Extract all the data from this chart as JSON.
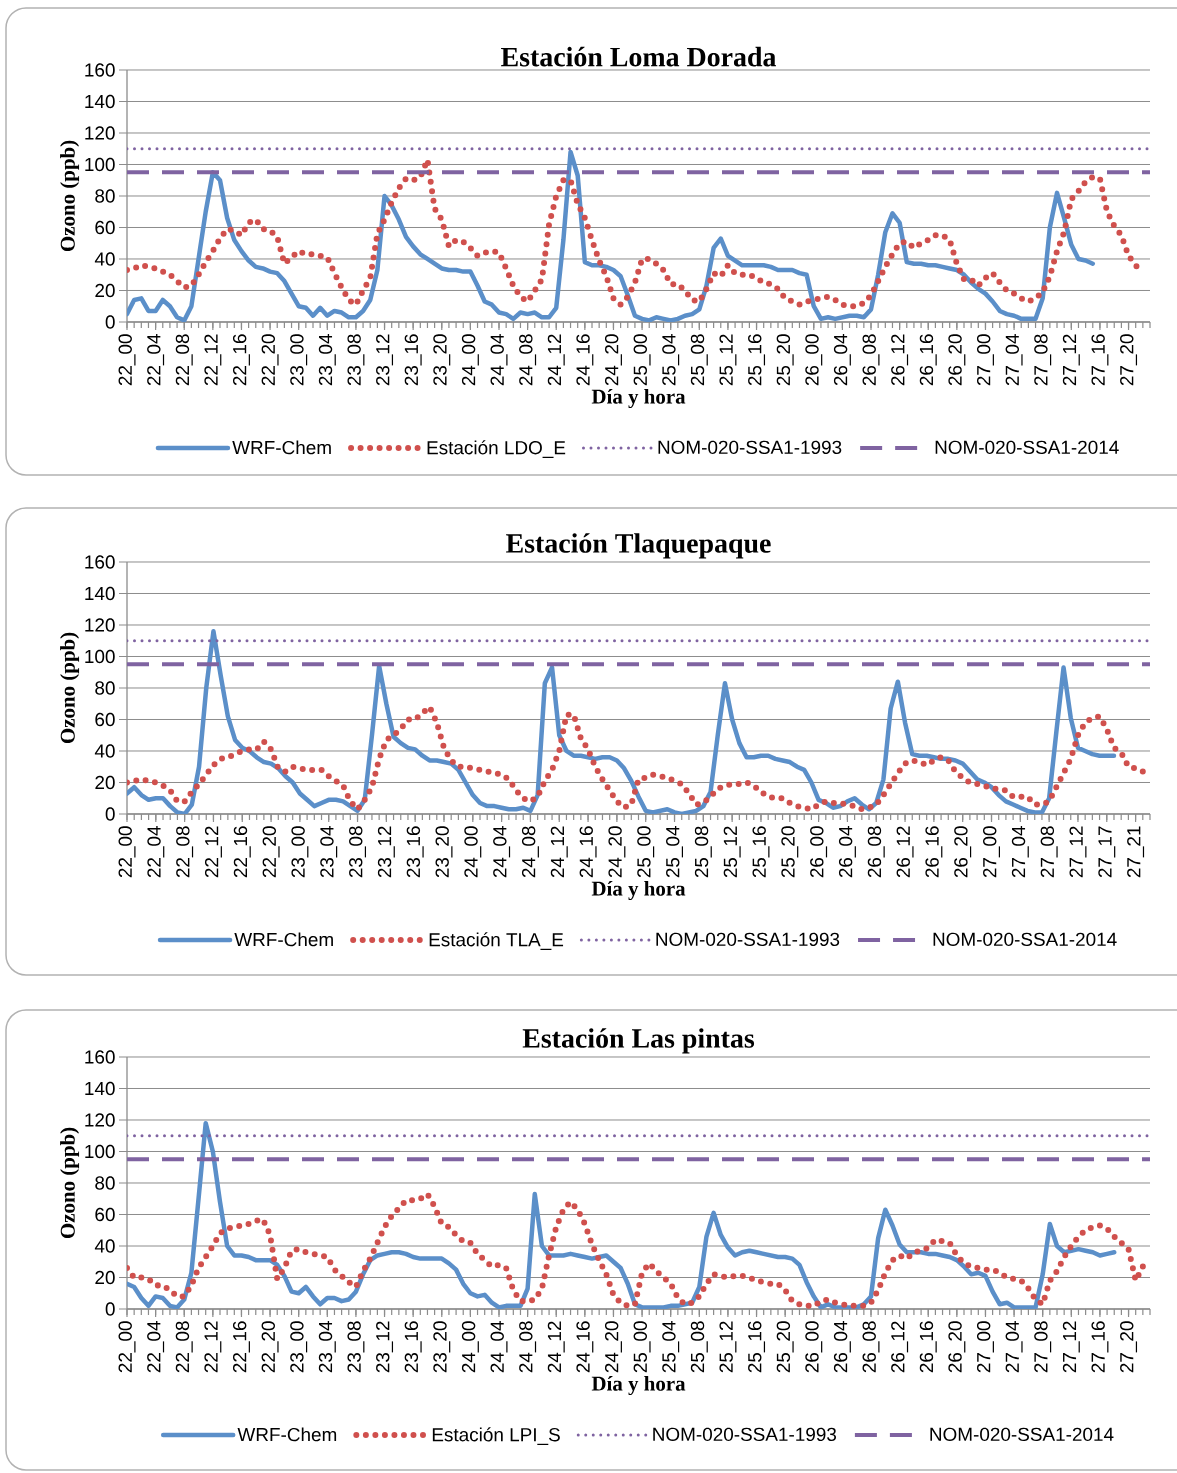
{
  "chart_data": [
    {
      "type": "line",
      "title": "Estación Loma Dorada",
      "xlabel": "Día y hora",
      "ylabel": "Ozono (ppb)",
      "grid": "y",
      "legend": "bottom",
      "ylim": [
        0,
        160
      ],
      "yticks": [
        0,
        20,
        40,
        60,
        80,
        100,
        120,
        140,
        160
      ],
      "categories": [
        "22_00",
        null,
        null,
        null,
        "22_04",
        null,
        null,
        null,
        "22_08",
        null,
        null,
        null,
        "22_12",
        null,
        null,
        null,
        "22_16",
        null,
        null,
        null,
        "22_20",
        null,
        null,
        null,
        "23_00",
        null,
        null,
        null,
        "23_04",
        null,
        null,
        null,
        "23_08",
        null,
        null,
        null,
        "23_12",
        null,
        null,
        null,
        "23_16",
        null,
        null,
        null,
        "23_20",
        null,
        null,
        null,
        "24_00",
        null,
        null,
        null,
        "24_04",
        null,
        null,
        null,
        "24_08",
        null,
        null,
        null,
        "24_12",
        null,
        null,
        null,
        "24_16",
        null,
        null,
        null,
        "24_20",
        null,
        null,
        null,
        "25_00",
        null,
        null,
        null,
        "25_04",
        null,
        null,
        null,
        "25_08",
        null,
        null,
        null,
        "25_12",
        null,
        null,
        null,
        "25_16",
        null,
        null,
        null,
        "25_20",
        null,
        null,
        null,
        "26_00",
        null,
        null,
        null,
        "26_04",
        null,
        null,
        null,
        "26_08",
        null,
        null,
        null,
        "26_12",
        null,
        null,
        null,
        "26_16",
        null,
        null,
        null,
        "26_20",
        null,
        null,
        null,
        "27_00",
        null,
        null,
        null,
        "27_04",
        null,
        null,
        null,
        "27_08",
        null,
        null,
        null,
        "27_12",
        null,
        null,
        null,
        "27_16",
        null,
        null,
        null,
        "27_20",
        null,
        null,
        null
      ],
      "series": [
        {
          "name": "WRF-Chem",
          "color": "#5b8fc9",
          "line_style": "solid",
          "values": [
            5,
            14,
            15,
            7,
            7,
            14,
            10,
            3,
            1,
            10,
            40,
            70,
            95,
            90,
            66,
            52,
            45,
            39,
            35,
            34,
            32,
            31,
            26,
            18,
            10,
            9,
            4,
            9,
            4,
            7,
            6,
            3,
            3,
            7,
            14,
            33,
            80,
            74,
            65,
            54,
            48,
            43,
            40,
            37,
            34,
            33,
            33,
            32,
            32,
            23,
            13,
            11,
            6,
            5,
            2,
            6,
            5,
            6,
            3,
            3,
            9,
            52,
            108,
            93,
            38,
            36,
            36,
            35,
            33,
            29,
            17,
            4,
            2,
            1,
            3,
            2,
            1,
            2,
            4,
            5,
            8,
            23,
            47,
            53,
            42,
            39,
            36,
            36,
            36,
            36,
            35,
            33,
            33,
            33,
            31,
            30,
            10,
            2,
            3,
            2,
            3,
            4,
            4,
            3,
            8,
            30,
            57,
            69,
            63,
            38,
            37,
            37,
            36,
            36,
            35,
            34,
            33,
            30,
            25,
            21,
            18,
            13,
            7,
            5,
            4,
            2,
            2,
            2,
            15,
            60,
            82,
            66,
            49,
            40,
            39,
            37,
            null,
            null,
            null,
            null,
            null,
            null,
            null,
            null
          ]
        },
        {
          "name": "Estación LDO_E",
          "color": "#d0504d",
          "line_style": "dotted",
          "values": [
            33,
            34,
            36,
            35,
            34,
            32,
            30,
            26,
            22,
            23,
            30,
            38,
            45,
            53,
            59,
            58,
            55,
            63,
            65,
            59,
            58,
            54,
            37,
            41,
            45,
            43,
            43,
            42,
            41,
            31,
            22,
            14,
            11,
            20,
            28,
            56,
            65,
            76,
            85,
            91,
            90,
            92,
            103,
            72,
            65,
            48,
            52,
            51,
            47,
            42,
            44,
            45,
            44,
            34,
            23,
            16,
            13,
            20,
            27,
            62,
            80,
            90,
            90,
            75,
            66,
            52,
            39,
            29,
            15,
            11,
            16,
            25,
            40,
            40,
            37,
            33,
            24,
            24,
            20,
            14,
            13,
            21,
            31,
            29,
            36,
            31,
            30,
            30,
            28,
            25,
            24,
            21,
            15,
            13,
            11,
            13,
            14,
            15,
            16,
            14,
            11,
            10,
            10,
            12,
            17,
            26,
            35,
            43,
            50,
            51,
            47,
            50,
            52,
            55,
            55,
            52,
            37,
            27,
            27,
            23,
            28,
            31,
            25,
            20,
            18,
            15,
            13,
            15,
            19,
            29,
            45,
            57,
            78,
            83,
            89,
            92,
            91,
            70,
            61,
            55,
            42,
            36,
            31,
            null
          ]
        }
      ],
      "ref_lines": [
        {
          "axis": "y",
          "value": 110,
          "label": "NOM-020-SSA1-1993",
          "color": "#7f63a1",
          "line_style": "dotted"
        },
        {
          "axis": "y",
          "value": 95,
          "label": "NOM-020-SSA1-2014",
          "color": "#7f63a1",
          "line_style": "dashed"
        }
      ]
    },
    {
      "type": "line",
      "title": "Estación Tlaquepaque",
      "xlabel": "Día y hora",
      "ylabel": "Ozono (ppb)",
      "grid": "y",
      "legend": "bottom",
      "ylim": [
        0,
        160
      ],
      "yticks": [
        0,
        20,
        40,
        60,
        80,
        100,
        120,
        140,
        160
      ],
      "categories": [
        "22_00",
        null,
        null,
        null,
        "22_04",
        null,
        null,
        null,
        "22_08",
        null,
        null,
        null,
        "22_12",
        null,
        null,
        null,
        "22_16",
        null,
        null,
        null,
        "22_20",
        null,
        null,
        null,
        "23_00",
        null,
        null,
        null,
        "23_04",
        null,
        null,
        null,
        "23_08",
        null,
        null,
        null,
        "23_12",
        null,
        null,
        null,
        "23_16",
        null,
        null,
        null,
        "23_20",
        null,
        null,
        null,
        "24_00",
        null,
        null,
        null,
        "24_04",
        null,
        null,
        null,
        "24_08",
        null,
        null,
        null,
        "24_12",
        null,
        null,
        null,
        "24_16",
        null,
        null,
        null,
        "24_20",
        null,
        null,
        null,
        "25_00",
        null,
        null,
        null,
        "25_04",
        null,
        null,
        null,
        "25_08",
        null,
        null,
        null,
        "25_12",
        null,
        null,
        null,
        "25_16",
        null,
        null,
        null,
        "25_20",
        null,
        null,
        null,
        "26_00",
        null,
        null,
        null,
        "26_04",
        null,
        null,
        null,
        "26_08",
        null,
        null,
        null,
        "26_12",
        null,
        null,
        null,
        "26_16",
        null,
        null,
        null,
        "26_20",
        null,
        null,
        null,
        "27_00",
        null,
        null,
        null,
        "27_04",
        null,
        null,
        null,
        "27_08",
        null,
        null,
        null,
        "27_12",
        null,
        null,
        null,
        "27_17",
        null,
        null,
        null,
        "27_21",
        null,
        null
      ],
      "series": [
        {
          "name": "WRF-Chem",
          "color": "#5b8fc9",
          "line_style": "solid",
          "values": [
            13,
            17,
            12,
            9,
            10,
            10,
            5,
            1,
            0,
            6,
            30,
            80,
            116,
            88,
            62,
            47,
            42,
            40,
            36,
            33,
            32,
            29,
            24,
            20,
            13,
            9,
            5,
            7,
            9,
            9,
            8,
            5,
            2,
            9,
            50,
            94,
            70,
            49,
            45,
            42,
            41,
            37,
            34,
            34,
            33,
            32,
            28,
            20,
            12,
            7,
            5,
            5,
            4,
            3,
            3,
            4,
            2,
            12,
            83,
            93,
            50,
            40,
            37,
            37,
            36,
            35,
            36,
            36,
            34,
            29,
            21,
            11,
            2,
            1,
            2,
            3,
            1,
            0,
            1,
            2,
            5,
            14,
            50,
            83,
            60,
            45,
            36,
            36,
            37,
            37,
            35,
            34,
            33,
            30,
            28,
            20,
            9,
            7,
            4,
            5,
            8,
            10,
            6,
            3,
            7,
            22,
            67,
            84,
            58,
            38,
            37,
            37,
            36,
            35,
            35,
            34,
            32,
            27,
            22,
            20,
            17,
            12,
            8,
            6,
            4,
            2,
            1,
            1,
            10,
            52,
            93,
            61,
            42,
            40,
            38,
            37,
            37,
            37,
            null,
            null,
            null,
            null,
            null
          ]
        },
        {
          "name": "Estación TLA_E",
          "color": "#d0504d",
          "line_style": "dotted",
          "values": [
            20,
            21,
            22,
            21,
            20,
            18,
            15,
            8,
            8,
            14,
            19,
            25,
            31,
            35,
            36,
            38,
            40,
            41,
            41,
            46,
            41,
            29,
            27,
            30,
            29,
            28,
            28,
            28,
            24,
            21,
            18,
            8,
            3,
            9,
            17,
            35,
            47,
            50,
            54,
            60,
            60,
            64,
            68,
            58,
            42,
            34,
            30,
            30,
            29,
            28,
            27,
            26,
            25,
            22,
            15,
            10,
            8,
            11,
            21,
            28,
            40,
            63,
            63,
            48,
            41,
            30,
            22,
            15,
            8,
            4,
            6,
            22,
            23,
            25,
            24,
            23,
            21,
            19,
            13,
            6,
            7,
            11,
            16,
            18,
            19,
            19,
            20,
            18,
            14,
            11,
            10,
            10,
            7,
            5,
            4,
            3,
            6,
            8,
            7,
            7,
            6,
            5,
            3,
            4,
            6,
            12,
            19,
            26,
            32,
            34,
            33,
            31,
            34,
            36,
            34,
            27,
            23,
            20,
            19,
            18,
            16,
            16,
            15,
            11,
            11,
            11,
            6,
            6,
            8,
            17,
            26,
            35,
            50,
            58,
            61,
            62,
            54,
            42,
            39,
            30,
            29,
            27,
            null
          ]
        }
      ],
      "ref_lines": [
        {
          "axis": "y",
          "value": 110,
          "label": "NOM-020-SSA1-1993",
          "color": "#7f63a1",
          "line_style": "dotted"
        },
        {
          "axis": "y",
          "value": 95,
          "label": "NOM-020-SSA1-2014",
          "color": "#7f63a1",
          "line_style": "dashed"
        }
      ]
    },
    {
      "type": "line",
      "title": "Estación Las pintas",
      "xlabel": "Día y hora",
      "ylabel": "Ozono (ppb)",
      "grid": "y",
      "legend": "bottom",
      "ylim": [
        0,
        160
      ],
      "yticks": [
        0,
        20,
        40,
        60,
        80,
        100,
        120,
        140,
        160
      ],
      "categories": [
        "22_00",
        null,
        null,
        null,
        "22_04",
        null,
        null,
        null,
        "22_08",
        null,
        null,
        null,
        "22_12",
        null,
        null,
        null,
        "22_16",
        null,
        null,
        null,
        "22_20",
        null,
        null,
        null,
        "23_00",
        null,
        null,
        null,
        "23_04",
        null,
        null,
        null,
        "23_08",
        null,
        null,
        null,
        "23_12",
        null,
        null,
        null,
        "23_16",
        null,
        null,
        null,
        "23_20",
        null,
        null,
        null,
        "24_00",
        null,
        null,
        null,
        "24_04",
        null,
        null,
        null,
        "24_08",
        null,
        null,
        null,
        "24_12",
        null,
        null,
        null,
        "24_16",
        null,
        null,
        null,
        "24_20",
        null,
        null,
        null,
        "25_00",
        null,
        null,
        null,
        "25_04",
        null,
        null,
        null,
        "25_08",
        null,
        null,
        null,
        "25_12",
        null,
        null,
        null,
        "25_16",
        null,
        null,
        null,
        "25_20",
        null,
        null,
        null,
        "26_00",
        null,
        null,
        null,
        "26_04",
        null,
        null,
        null,
        "26_08",
        null,
        null,
        null,
        "26_12",
        null,
        null,
        null,
        "26_16",
        null,
        null,
        null,
        "26_20",
        null,
        null,
        null,
        "27_00",
        null,
        null,
        null,
        "27_04",
        null,
        null,
        null,
        "27_08",
        null,
        null,
        null,
        "27_12",
        null,
        null,
        null,
        "27_16",
        null,
        null,
        null,
        "27_20",
        null,
        null,
        null
      ],
      "series": [
        {
          "name": "WRF-Chem",
          "color": "#5b8fc9",
          "line_style": "solid",
          "values": [
            16,
            14,
            7,
            2,
            8,
            7,
            2,
            1,
            6,
            23,
            70,
            118,
            100,
            68,
            40,
            34,
            34,
            33,
            31,
            31,
            31,
            28,
            21,
            11,
            10,
            14,
            8,
            3,
            7,
            7,
            5,
            6,
            11,
            22,
            31,
            34,
            35,
            36,
            36,
            35,
            33,
            32,
            32,
            32,
            32,
            29,
            25,
            16,
            10,
            8,
            9,
            4,
            1,
            2,
            2,
            2,
            13,
            73,
            40,
            34,
            34,
            34,
            35,
            34,
            33,
            32,
            33,
            34,
            30,
            26,
            16,
            3,
            1,
            1,
            1,
            1,
            2,
            2,
            3,
            4,
            14,
            46,
            61,
            47,
            39,
            34,
            36,
            37,
            36,
            35,
            34,
            33,
            33,
            32,
            28,
            17,
            8,
            1,
            3,
            1,
            1,
            1,
            1,
            3,
            8,
            45,
            63,
            53,
            41,
            36,
            36,
            36,
            35,
            35,
            34,
            33,
            31,
            27,
            22,
            23,
            21,
            11,
            3,
            4,
            1,
            1,
            1,
            1,
            22,
            54,
            40,
            36,
            37,
            38,
            37,
            36,
            34,
            35,
            36,
            null,
            null,
            null,
            null,
            null
          ]
        },
        {
          "name": "Estación LPI_S",
          "color": "#d0504d",
          "line_style": "dotted",
          "values": [
            26,
            20,
            20,
            19,
            15,
            15,
            12,
            8,
            8,
            15,
            26,
            33,
            40,
            48,
            51,
            52,
            53,
            54,
            56,
            57,
            47,
            19,
            26,
            37,
            38,
            36,
            35,
            34,
            33,
            25,
            21,
            17,
            14,
            24,
            32,
            42,
            52,
            59,
            64,
            69,
            69,
            70,
            73,
            65,
            54,
            52,
            47,
            43,
            42,
            35,
            31,
            27,
            28,
            26,
            12,
            5,
            5,
            6,
            13,
            34,
            52,
            63,
            68,
            63,
            54,
            41,
            31,
            22,
            9,
            4,
            2,
            3,
            23,
            29,
            24,
            20,
            16,
            7,
            3,
            4,
            8,
            16,
            22,
            21,
            20,
            21,
            21,
            20,
            18,
            17,
            16,
            16,
            12,
            5,
            3,
            2,
            2,
            5,
            6,
            4,
            3,
            2,
            2,
            2,
            4,
            12,
            23,
            31,
            34,
            32,
            36,
            37,
            39,
            44,
            43,
            42,
            34,
            29,
            27,
            26,
            25,
            25,
            23,
            20,
            19,
            18,
            13,
            6,
            3,
            18,
            24,
            33,
            40,
            46,
            50,
            52,
            53,
            51,
            46,
            42,
            38,
            18,
            27,
            null
          ]
        }
      ],
      "ref_lines": [
        {
          "axis": "y",
          "value": 110,
          "label": "NOM-020-SSA1-1993",
          "color": "#7f63a1",
          "line_style": "dotted"
        },
        {
          "axis": "y",
          "value": 95,
          "label": "NOM-020-SSA1-2014",
          "color": "#7f63a1",
          "line_style": "dashed"
        }
      ]
    }
  ]
}
